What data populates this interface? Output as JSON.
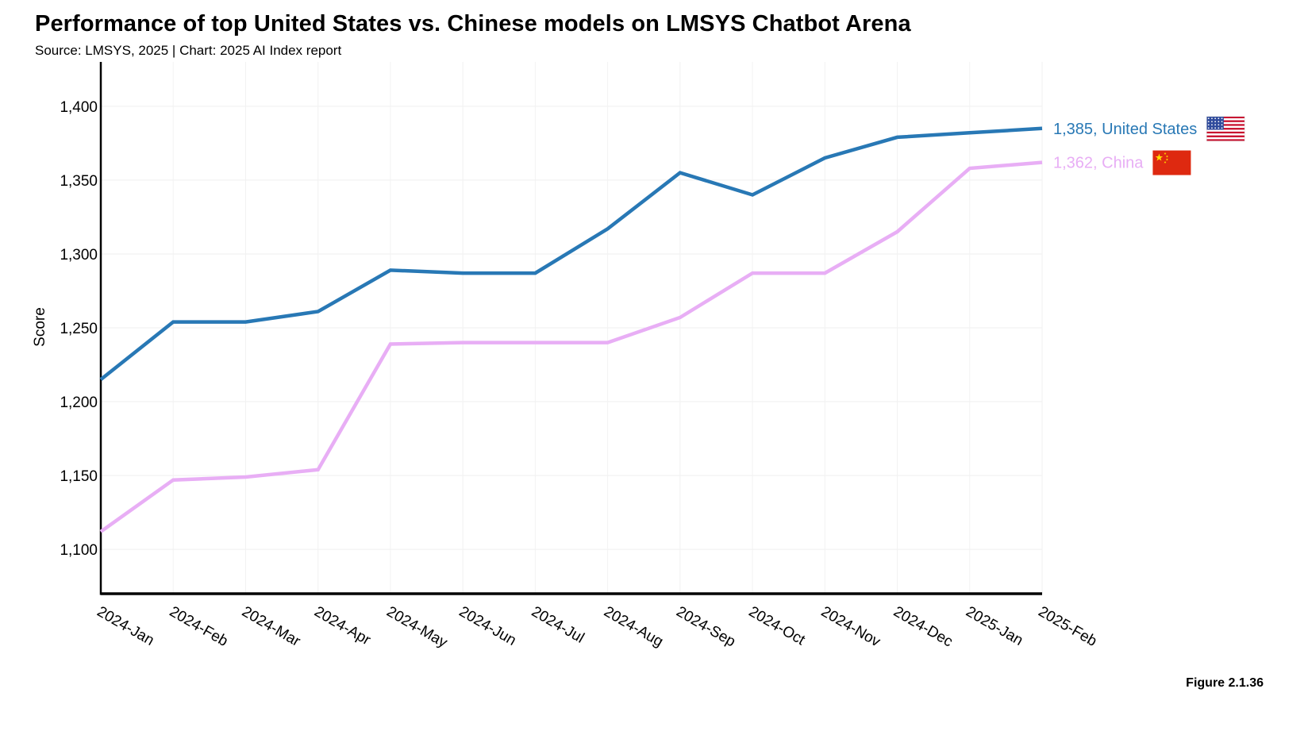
{
  "header": {
    "title": "Performance of top United States vs. Chinese models on LMSYS Chatbot Arena",
    "subtitle": "Source: LMSYS, 2025 | Chart: 2025 AI Index report"
  },
  "footer": {
    "figure_label": "Figure 2.1.36"
  },
  "chart_data": {
    "type": "line",
    "ylabel": "Score",
    "ylim": [
      1070,
      1430
    ],
    "yticks": [
      1100,
      1150,
      1200,
      1250,
      1300,
      1350,
      1400
    ],
    "ytick_labels": [
      "1,100",
      "1,150",
      "1,200",
      "1,250",
      "1,300",
      "1,350",
      "1,400"
    ],
    "grid": true,
    "categories": [
      "2024-Jan",
      "2024-Feb",
      "2024-Mar",
      "2024-Apr",
      "2024-May",
      "2024-Jun",
      "2024-Jul",
      "2024-Aug",
      "2024-Sep",
      "2024-Oct",
      "2024-Nov",
      "2024-Dec",
      "2025-Jan",
      "2025-Feb"
    ],
    "series": [
      {
        "name": "United States",
        "color": "#2878b5",
        "end_label": "1,385, United States",
        "flag_icon": "us-flag-icon",
        "values": [
          1215,
          1254,
          1254,
          1261,
          1289,
          1287,
          1287,
          1317,
          1355,
          1340,
          1365,
          1379,
          1382,
          1385
        ]
      },
      {
        "name": "China",
        "color": "#e8aef5",
        "end_label": "1,362, China",
        "flag_icon": "china-flag-icon",
        "values": [
          1112,
          1147,
          1149,
          1154,
          1239,
          1240,
          1240,
          1240,
          1257,
          1287,
          1287,
          1315,
          1358,
          1362
        ]
      }
    ]
  }
}
